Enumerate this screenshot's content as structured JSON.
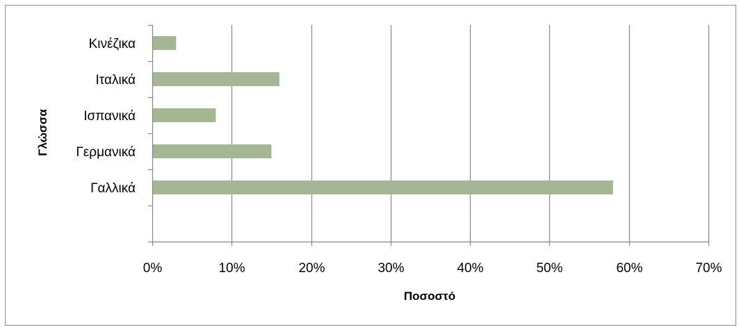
{
  "chart_data": {
    "type": "bar",
    "orientation": "horizontal",
    "categories": [
      "Γαλλικά",
      "Γερμανικά",
      "Ισπανικά",
      "Ιταλικά",
      "Κινέζικα"
    ],
    "values": [
      0.58,
      0.15,
      0.08,
      0.16,
      0.03
    ],
    "xlabel": "Ποσοστό",
    "ylabel": "Γλώσσα",
    "xlim": [
      0,
      0.7
    ],
    "x_ticks": [
      "0%",
      "10%",
      "20%",
      "30%",
      "40%",
      "50%",
      "60%",
      "70%"
    ],
    "grid": "vertical",
    "bar_color": "#a4b693",
    "grid_color": "#868686"
  }
}
